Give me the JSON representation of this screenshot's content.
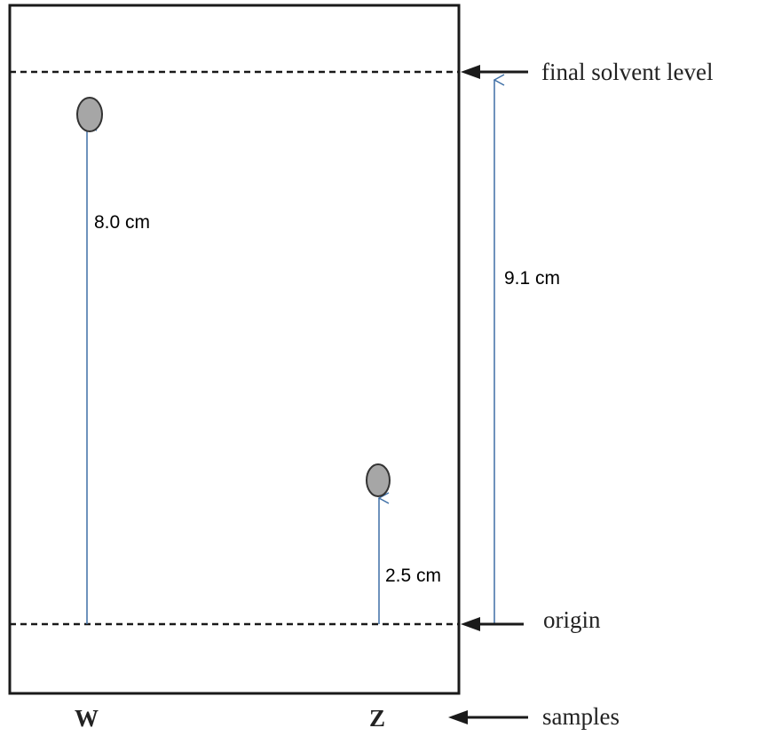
{
  "diagram": {
    "labels": {
      "final_solvent_level": "final solvent level",
      "origin": "origin",
      "samples": "samples"
    },
    "samples": [
      {
        "name": "W",
        "spot_distance_label": "8.0 cm"
      },
      {
        "name": "Z",
        "spot_distance_label": "2.5 cm"
      }
    ],
    "solvent_front_distance_label": "9.1 cm",
    "colors": {
      "plate_border": "#1a1a1a",
      "dashed_line": "#1a1a1a",
      "measure_arrow": "#3e6fa6",
      "spot_fill": "#a6a6a6",
      "spot_stroke": "#333333",
      "pointer_arrow": "#1a1a1a"
    }
  }
}
